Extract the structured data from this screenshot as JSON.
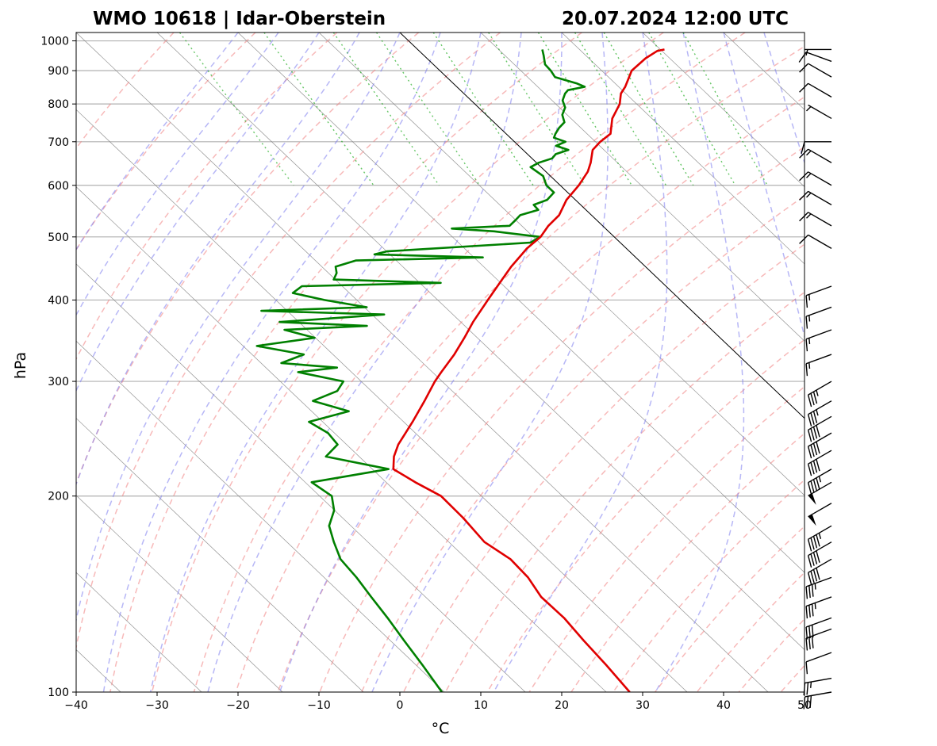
{
  "chart_data": {
    "type": "skew-t",
    "title_left": "WMO 10618 | Idar-Oberstein",
    "title_right": "20.07.2024 12:00 UTC",
    "xlabel": "°C",
    "ylabel": "hPa",
    "xlim": [
      -40,
      50
    ],
    "ylim": [
      1030,
      100
    ],
    "y_scale": "log",
    "x_ticks": [
      -40,
      -30,
      -20,
      -10,
      0,
      10,
      20,
      30,
      40,
      50
    ],
    "x_tick_labels": [
      "−40",
      "−30",
      "−20",
      "−10",
      "0",
      "10",
      "20",
      "30",
      "40",
      "50"
    ],
    "y_ticks": [
      1000,
      900,
      800,
      700,
      600,
      500,
      400,
      300,
      200,
      100
    ],
    "y_tick_labels": [
      "1000",
      "900",
      "800",
      "700",
      "600",
      "500",
      "400",
      "300",
      "200",
      "100"
    ],
    "grid": true,
    "colors": {
      "temperature": "#e00000",
      "dewpoint": "#008000",
      "dry_adiabats": "#f08080",
      "moist_adiabats": "#7b7bee",
      "mixing_ratio": "#00a000",
      "isotherms": "#808080",
      "zero_isotherm": "#000000"
    },
    "temperature": {
      "p": [
        970,
        965,
        940,
        900,
        850,
        830,
        800,
        760,
        720,
        700,
        680,
        650,
        630,
        600,
        570,
        540,
        520,
        500,
        480,
        470,
        450,
        430,
        400,
        370,
        350,
        330,
        310,
        300,
        280,
        260,
        240,
        230,
        220,
        210,
        200,
        185,
        170,
        160,
        150,
        140,
        130,
        120,
        110,
        100
      ],
      "t": [
        30.5,
        29.4,
        27.0,
        23.7,
        20.8,
        19.4,
        17.9,
        15.1,
        12.9,
        10.6,
        8.6,
        6.7,
        5.2,
        2.3,
        -1.1,
        -4.0,
        -6.7,
        -9.1,
        -12.3,
        -13.7,
        -16.6,
        -19.4,
        -23.8,
        -28.5,
        -31.6,
        -35.0,
        -38.9,
        -40.9,
        -44.7,
        -48.9,
        -53.6,
        -55.7,
        -57.4,
        -56.4,
        -55.0,
        -55.1,
        -55.6,
        -54.6,
        -54.8,
        -55.7,
        -55.6,
        -56.1,
        -56.5,
        -57.1
      ]
    },
    "dewpoint": {
      "p": [
        970,
        950,
        920,
        900,
        880,
        860,
        850,
        840,
        830,
        810,
        790,
        770,
        750,
        735,
        720,
        710,
        700,
        690,
        680,
        670,
        660,
        650,
        640,
        620,
        600,
        585,
        570,
        560,
        550,
        540,
        530,
        520,
        515,
        510,
        500,
        490,
        475,
        470,
        465,
        460,
        450,
        440,
        430,
        425,
        420,
        410,
        400,
        390,
        385,
        380,
        370,
        365,
        360,
        350,
        340,
        330,
        320,
        315,
        310,
        300,
        290,
        280,
        270,
        260,
        250,
        240,
        230,
        220,
        210,
        200,
        190,
        180,
        170,
        160,
        150,
        140,
        130,
        120,
        110,
        100
      ],
      "t": [
        15.4,
        14.8,
        13.8,
        13.7,
        13.4,
        15.3,
        15.8,
        13.3,
        12.5,
        11.3,
        10.7,
        9.4,
        8.7,
        7.3,
        6.1,
        5.4,
        6.3,
        4.6,
        5.6,
        3.5,
        2.5,
        0.3,
        -1.3,
        -0.9,
        -1.7,
        -1.7,
        -3.5,
        -5.8,
        -5.9,
        -8.8,
        -10.1,
        -11.5,
        -19.0,
        -14.1,
        -9.2,
        -11.1,
        -30.0,
        -31.9,
        -18.9,
        -35.0,
        -38.3,
        -39.0,
        -40.2,
        -27.4,
        -45.0,
        -47.0,
        -44.0,
        -39.7,
        -53.2,
        -38.5,
        -52.4,
        -42.1,
        -52.8,
        -50.1,
        -58.3,
        -53.6,
        -57.5,
        -51.2,
        -56.6,
        -52.2,
        -54.2,
        -58.5,
        -55.4,
        -61.7,
        -60.8,
        -61.1,
        -64.1,
        -58.0,
        -69.2,
        -68.5,
        -70.1,
        -72.7,
        -74.2,
        -75.6,
        -76.0,
        -76.7,
        -77.4,
        -78.3,
        -79.2,
        -80.3
      ]
    },
    "wind_barbs": [
      {
        "p": 970,
        "spd_kt": 5,
        "dir_deg": 270
      },
      {
        "p": 930,
        "spd_kt": 10,
        "dir_deg": 290
      },
      {
        "p": 880,
        "spd_kt": 10,
        "dir_deg": 300
      },
      {
        "p": 820,
        "spd_kt": 10,
        "dir_deg": 300
      },
      {
        "p": 760,
        "spd_kt": 5,
        "dir_deg": 300
      },
      {
        "p": 700,
        "spd_kt": 10,
        "dir_deg": 270
      },
      {
        "p": 650,
        "spd_kt": 15,
        "dir_deg": 300
      },
      {
        "p": 600,
        "spd_kt": 15,
        "dir_deg": 300
      },
      {
        "p": 560,
        "spd_kt": 15,
        "dir_deg": 300
      },
      {
        "p": 520,
        "spd_kt": 15,
        "dir_deg": 300
      },
      {
        "p": 480,
        "spd_kt": 10,
        "dir_deg": 300
      },
      {
        "p": 420,
        "spd_kt": 15,
        "dir_deg": 250
      },
      {
        "p": 390,
        "spd_kt": 15,
        "dir_deg": 250
      },
      {
        "p": 360,
        "spd_kt": 15,
        "dir_deg": 250
      },
      {
        "p": 330,
        "spd_kt": 15,
        "dir_deg": 250
      },
      {
        "p": 300,
        "spd_kt": 35,
        "dir_deg": 240
      },
      {
        "p": 280,
        "spd_kt": 35,
        "dir_deg": 240
      },
      {
        "p": 265,
        "spd_kt": 40,
        "dir_deg": 240
      },
      {
        "p": 250,
        "spd_kt": 40,
        "dir_deg": 240
      },
      {
        "p": 235,
        "spd_kt": 40,
        "dir_deg": 240
      },
      {
        "p": 220,
        "spd_kt": 45,
        "dir_deg": 240
      },
      {
        "p": 210,
        "spd_kt": 50,
        "dir_deg": 240
      },
      {
        "p": 195,
        "spd_kt": 50,
        "dir_deg": 240
      },
      {
        "p": 180,
        "spd_kt": 45,
        "dir_deg": 240
      },
      {
        "p": 170,
        "spd_kt": 40,
        "dir_deg": 240
      },
      {
        "p": 160,
        "spd_kt": 40,
        "dir_deg": 240
      },
      {
        "p": 150,
        "spd_kt": 35,
        "dir_deg": 250
      },
      {
        "p": 140,
        "spd_kt": 35,
        "dir_deg": 250
      },
      {
        "p": 130,
        "spd_kt": 30,
        "dir_deg": 250
      },
      {
        "p": 125,
        "spd_kt": 30,
        "dir_deg": 250
      },
      {
        "p": 115,
        "spd_kt": 10,
        "dir_deg": 250
      },
      {
        "p": 105,
        "spd_kt": 25,
        "dir_deg": 260
      },
      {
        "p": 100,
        "spd_kt": 30,
        "dir_deg": 260
      }
    ]
  }
}
